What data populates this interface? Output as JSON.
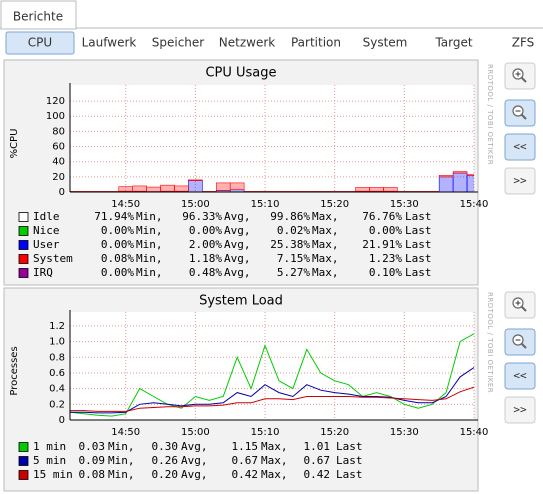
{
  "tabs": [
    "Berichte"
  ],
  "nav": {
    "items": [
      "CPU",
      "Laufwerk",
      "Speicher",
      "Netzwerk",
      "Partition",
      "System",
      "Target",
      "ZFS"
    ],
    "selected": 0
  },
  "watermark": "RRDTOOL / TOBI OETIKER",
  "buttons": {
    "back": "<<",
    "forward": ">>"
  },
  "chart_data": [
    {
      "type": "area",
      "title": "CPU Usage",
      "y_label": "%CPU",
      "xlim": [
        882,
        940
      ],
      "xticks": [
        {
          "value": 890,
          "label": "14:50"
        },
        {
          "value": 900,
          "label": "15:00"
        },
        {
          "value": 910,
          "label": "15:10"
        },
        {
          "value": 920,
          "label": "15:20"
        },
        {
          "value": 930,
          "label": "15:30"
        },
        {
          "value": 940,
          "label": "15:40"
        }
      ],
      "ylim": [
        0,
        128
      ],
      "yticks": [
        0,
        20,
        40,
        60,
        80,
        100,
        120
      ],
      "grid": true,
      "x": [
        882,
        884,
        886,
        888,
        890,
        892,
        894,
        896,
        898,
        900,
        902,
        904,
        906,
        908,
        910,
        912,
        914,
        916,
        918,
        920,
        922,
        924,
        926,
        928,
        930,
        932,
        934,
        936,
        938,
        940
      ],
      "stat_labels": [
        "Min,",
        "Avg,",
        "Max,",
        "Last"
      ],
      "series": [
        {
          "name": "Idle",
          "color": "#ffffff",
          "stats": [
            "71.94%",
            "96.33%",
            "99.86%",
            "76.76%"
          ]
        },
        {
          "name": "Nice",
          "color": "#00cc00",
          "stats": [
            "0.00%",
            "0.00%",
            "0.02%",
            "0.00%"
          ]
        },
        {
          "name": "User",
          "color": "#0000ff",
          "stats": [
            "0.00%",
            "2.00%",
            "25.38%",
            "21.91%"
          ],
          "values": [
            0.3,
            0.3,
            0.3,
            0.3,
            1,
            1,
            0.5,
            1,
            1,
            15,
            0.3,
            2,
            3,
            0.3,
            0.3,
            0.3,
            0.3,
            0.3,
            0.3,
            0.3,
            0.3,
            1,
            1,
            1,
            0.3,
            0.3,
            0.3,
            20,
            25,
            22
          ]
        },
        {
          "name": "System",
          "color": "#ff0000",
          "stats": [
            "0.08%",
            "1.18%",
            "7.15%",
            "1.23%"
          ],
          "values": [
            0.5,
            0.5,
            0.5,
            0.5,
            6,
            7,
            6,
            8,
            7,
            1,
            0.5,
            10,
            9,
            0.5,
            0.5,
            0.5,
            0.5,
            0.5,
            0.5,
            0.5,
            0.5,
            5,
            5,
            5,
            0.5,
            0.5,
            0.5,
            2,
            2,
            1
          ]
        },
        {
          "name": "IRQ",
          "color": "#990099",
          "stats": [
            "0.00%",
            "0.48%",
            "5.27%",
            "0.10%"
          ]
        }
      ]
    },
    {
      "type": "line",
      "title": "System Load",
      "y_label": "Processes",
      "xlim": [
        882,
        940
      ],
      "xticks": [
        {
          "value": 890,
          "label": "14:50"
        },
        {
          "value": 900,
          "label": "15:00"
        },
        {
          "value": 910,
          "label": "15:10"
        },
        {
          "value": 920,
          "label": "15:20"
        },
        {
          "value": 930,
          "label": "15:30"
        },
        {
          "value": 940,
          "label": "15:40"
        }
      ],
      "ylim": [
        0,
        1.25
      ],
      "yticks": [
        0,
        0.2,
        0.4,
        0.6,
        0.8,
        {
          "value": 1,
          "label": "1.0"
        },
        1.2
      ],
      "grid": true,
      "x": [
        882,
        884,
        886,
        888,
        890,
        892,
        894,
        896,
        898,
        900,
        902,
        904,
        906,
        908,
        910,
        912,
        914,
        916,
        918,
        920,
        922,
        924,
        926,
        928,
        930,
        932,
        934,
        936,
        938,
        940
      ],
      "stat_labels": [
        "Min,",
        "Avg,",
        "Max,",
        "Last"
      ],
      "series": [
        {
          "name": "1 min",
          "color": "#00cc00",
          "stats": [
            "0.03",
            "0.30",
            "1.15",
            "1.01"
          ],
          "values": [
            0.1,
            0.08,
            0.06,
            0.05,
            0.08,
            0.4,
            0.3,
            0.2,
            0.15,
            0.3,
            0.25,
            0.3,
            0.8,
            0.4,
            0.95,
            0.5,
            0.4,
            0.9,
            0.6,
            0.5,
            0.45,
            0.3,
            0.35,
            0.3,
            0.2,
            0.15,
            0.2,
            0.35,
            1.0,
            1.1
          ]
        },
        {
          "name": "5 min",
          "color": "#0000aa",
          "stats": [
            "0.09",
            "0.26",
            "0.67",
            "0.67"
          ],
          "values": [
            0.1,
            0.1,
            0.09,
            0.09,
            0.1,
            0.2,
            0.22,
            0.2,
            0.18,
            0.2,
            0.2,
            0.22,
            0.35,
            0.3,
            0.45,
            0.35,
            0.3,
            0.45,
            0.38,
            0.35,
            0.33,
            0.3,
            0.3,
            0.29,
            0.25,
            0.22,
            0.22,
            0.3,
            0.55,
            0.67
          ]
        },
        {
          "name": "15 min",
          "color": "#cc0000",
          "stats": [
            "0.08",
            "0.20",
            "0.42",
            "0.42"
          ],
          "values": [
            0.12,
            0.12,
            0.11,
            0.11,
            0.11,
            0.15,
            0.16,
            0.17,
            0.17,
            0.18,
            0.18,
            0.19,
            0.22,
            0.22,
            0.27,
            0.27,
            0.26,
            0.3,
            0.3,
            0.3,
            0.3,
            0.29,
            0.29,
            0.28,
            0.27,
            0.26,
            0.25,
            0.27,
            0.36,
            0.42
          ]
        }
      ]
    }
  ]
}
